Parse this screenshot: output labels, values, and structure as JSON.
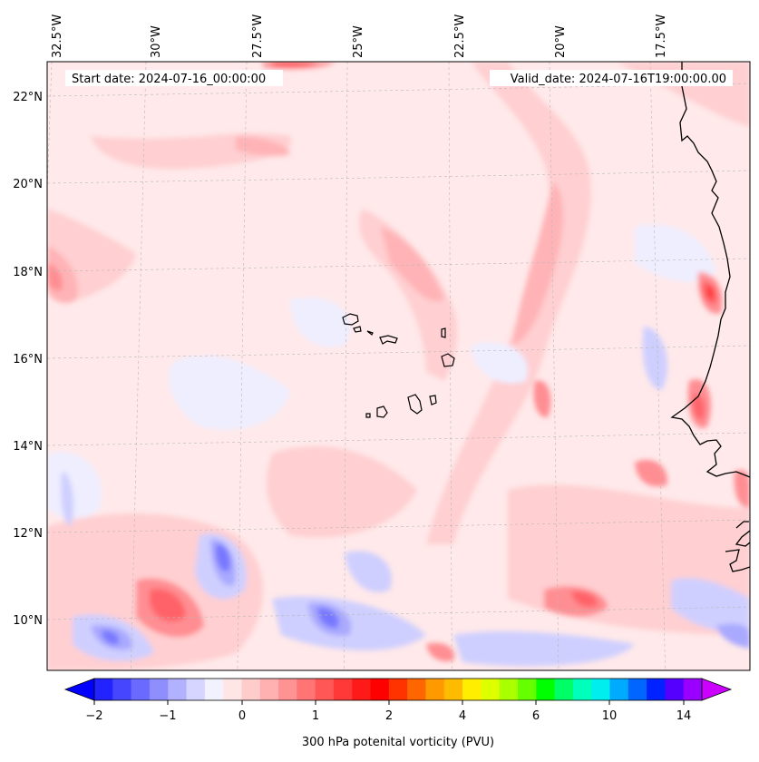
{
  "map": {
    "start_label": "Start date: 2024-07-16_00:00:00",
    "valid_label": "Valid_date: 2024-07-16T19:00:00.00",
    "lon_labels": [
      "32.5°W",
      "30°W",
      "27.5°W",
      "25°W",
      "22.5°W",
      "20°W",
      "17.5°W"
    ],
    "lat_labels": [
      "22°N",
      "20°N",
      "18°N",
      "16°N",
      "14°N",
      "12°N",
      "10°N"
    ],
    "extent": {
      "lon_min": -33.0,
      "lon_max": -15.5,
      "lat_min": 8.8,
      "lat_max": 22.8
    }
  },
  "colorbar": {
    "label": "300 hPa potenital vorticity (PVU)",
    "tick_labels": [
      "−2",
      "−1",
      "0",
      "1",
      "2",
      "4",
      "6",
      "10",
      "14"
    ],
    "colors": [
      "#2323ff",
      "#4646ff",
      "#6a6aff",
      "#8e8eff",
      "#b1b1ff",
      "#d5d5ff",
      "#f2f2ff",
      "#ffe6e6",
      "#ffcccc",
      "#ffb0b0",
      "#ff9292",
      "#ff7474",
      "#ff5656",
      "#ff3838",
      "#ff1a1a",
      "#ff0000",
      "#ff3300",
      "#ff6600",
      "#ff9900",
      "#ffbb00",
      "#ffee00",
      "#ddff00",
      "#aaff00",
      "#66ff00",
      "#00ff00",
      "#00ff66",
      "#00ffbb",
      "#00eeee",
      "#00aaff",
      "#0066ff",
      "#0022ff",
      "#5500ff",
      "#9900ff"
    ],
    "low_color": "#0000ff",
    "high_color": "#cc00ff",
    "field_colors": {
      "bg": "#ffe9ea",
      "blue_faint": "#eeeeff",
      "blue_light": "#cfcfff",
      "blue_mid": "#a9a9ff",
      "blue_strong": "#7878ff",
      "pink": "#ffcfd1",
      "pink_mid": "#ffb3b6",
      "red_light": "#ff8e93",
      "red_mid": "#ff6469",
      "red_strong": "#ff3a3a"
    }
  }
}
